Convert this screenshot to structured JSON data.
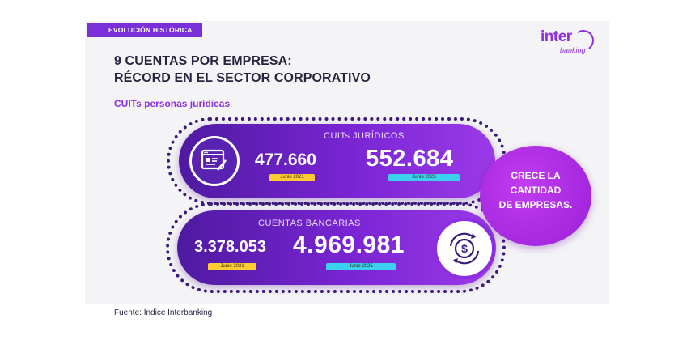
{
  "tag": "EVOLUCIÓN HISTÓRICA",
  "logo": {
    "main": "inter",
    "sub": "banking"
  },
  "headline": {
    "line1": "9 CUENTAS POR EMPRESA:",
    "line2": "RÉCORD EN EL SECTOR CORPORATIVO"
  },
  "subhead": "CUITs personas jurídicas",
  "card1": {
    "label": "CUITs JURÍDICOS",
    "value_before": "477.660",
    "date_before": "Junio 2021",
    "value_after": "552.684",
    "date_after": "Junio 2025",
    "icon": "document-edit-icon"
  },
  "card2": {
    "label": "CUENTAS BANCARIAS",
    "value_before": "3.378.053",
    "date_before": "Junio 2021",
    "value_after": "4.969.981",
    "date_after": "Junio 2025",
    "icon": "dollar-cycle-icon"
  },
  "burst": {
    "line1": "CRECE LA",
    "line2": "CANTIDAD",
    "line3": "DE EMPRESAS."
  },
  "source": "Fuente: Índice Interbanking",
  "colors": {
    "brand_purple": "#8d2ee0",
    "dark_purple": "#4e1aa0",
    "highlight_yellow": "#ffcc33",
    "highlight_cyan": "#3bd2f0"
  }
}
